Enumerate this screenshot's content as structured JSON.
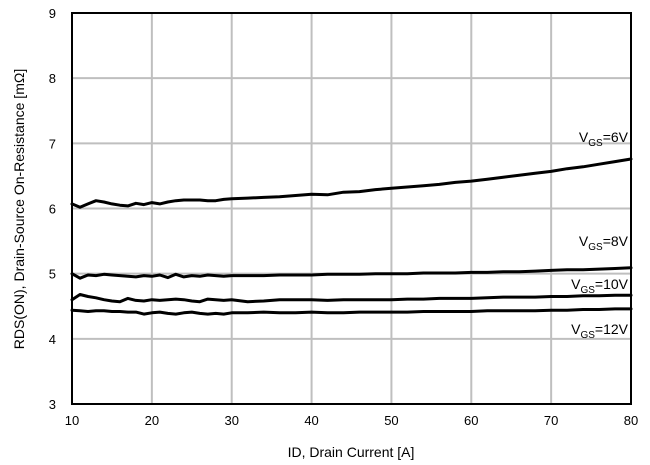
{
  "chart_data": {
    "type": "line",
    "title": "",
    "xlabel": "ID, Drain Current [A]",
    "ylabel": "RDS(ON), Drain-Source On-Resistance [mΩ]",
    "xlim": [
      10,
      80
    ],
    "ylim": [
      3,
      9
    ],
    "xticks": [
      10,
      20,
      30,
      40,
      50,
      60,
      70,
      80
    ],
    "yticks": [
      3,
      4,
      5,
      6,
      7,
      8,
      9
    ],
    "grid": true,
    "legend": "none",
    "line_color": "#000000",
    "grid_color": "#bfbfbf",
    "series": [
      {
        "name_main": "V",
        "name_sub": "GS",
        "name_suffix": "=6V",
        "x": [
          10,
          11,
          12,
          13,
          14,
          15,
          16,
          17,
          18,
          19,
          20,
          21,
          22,
          23,
          24,
          25,
          26,
          27,
          28,
          29,
          30,
          32,
          34,
          36,
          38,
          40,
          42,
          44,
          46,
          48,
          50,
          52,
          54,
          56,
          58,
          60,
          62,
          64,
          66,
          68,
          70,
          72,
          74,
          76,
          78,
          80
        ],
        "y": [
          6.07,
          6.02,
          6.07,
          6.12,
          6.1,
          6.07,
          6.05,
          6.04,
          6.08,
          6.06,
          6.09,
          6.07,
          6.1,
          6.12,
          6.13,
          6.13,
          6.13,
          6.12,
          6.12,
          6.14,
          6.15,
          6.16,
          6.17,
          6.18,
          6.2,
          6.22,
          6.21,
          6.25,
          6.26,
          6.29,
          6.31,
          6.33,
          6.35,
          6.37,
          6.4,
          6.42,
          6.45,
          6.48,
          6.51,
          6.54,
          6.57,
          6.61,
          6.64,
          6.68,
          6.72,
          6.76
        ]
      },
      {
        "name_main": "V",
        "name_sub": "GS",
        "name_suffix": "=8V",
        "x": [
          10,
          11,
          12,
          13,
          14,
          15,
          16,
          17,
          18,
          19,
          20,
          21,
          22,
          23,
          24,
          25,
          26,
          27,
          28,
          29,
          30,
          32,
          34,
          36,
          38,
          40,
          42,
          44,
          46,
          48,
          50,
          52,
          54,
          56,
          58,
          60,
          62,
          64,
          66,
          68,
          70,
          72,
          74,
          76,
          78,
          80
        ],
        "y": [
          5.0,
          4.93,
          4.98,
          4.97,
          4.99,
          4.98,
          4.97,
          4.96,
          4.95,
          4.97,
          4.96,
          4.98,
          4.94,
          4.99,
          4.95,
          4.97,
          4.96,
          4.98,
          4.97,
          4.96,
          4.97,
          4.97,
          4.97,
          4.98,
          4.98,
          4.98,
          4.99,
          4.99,
          4.99,
          5.0,
          5.0,
          5.0,
          5.01,
          5.01,
          5.01,
          5.02,
          5.02,
          5.03,
          5.03,
          5.04,
          5.05,
          5.06,
          5.06,
          5.07,
          5.08,
          5.09
        ]
      },
      {
        "name_main": "V",
        "name_sub": "GS",
        "name_suffix": "=10V",
        "x": [
          10,
          11,
          12,
          13,
          14,
          15,
          16,
          17,
          18,
          19,
          20,
          21,
          22,
          23,
          24,
          25,
          26,
          27,
          28,
          29,
          30,
          32,
          34,
          36,
          38,
          40,
          42,
          44,
          46,
          48,
          50,
          52,
          54,
          56,
          58,
          60,
          62,
          64,
          66,
          68,
          70,
          72,
          74,
          76,
          78,
          80
        ],
        "y": [
          4.6,
          4.68,
          4.65,
          4.63,
          4.6,
          4.58,
          4.57,
          4.62,
          4.59,
          4.58,
          4.6,
          4.59,
          4.6,
          4.61,
          4.6,
          4.58,
          4.57,
          4.61,
          4.6,
          4.59,
          4.6,
          4.57,
          4.58,
          4.6,
          4.6,
          4.6,
          4.59,
          4.6,
          4.6,
          4.6,
          4.6,
          4.61,
          4.61,
          4.62,
          4.62,
          4.62,
          4.63,
          4.64,
          4.64,
          4.64,
          4.65,
          4.65,
          4.66,
          4.66,
          4.67,
          4.67
        ]
      },
      {
        "name_main": "V",
        "name_sub": "GS",
        "name_suffix": "=12V",
        "x": [
          10,
          11,
          12,
          13,
          14,
          15,
          16,
          17,
          18,
          19,
          20,
          21,
          22,
          23,
          24,
          25,
          26,
          27,
          28,
          29,
          30,
          32,
          34,
          36,
          38,
          40,
          42,
          44,
          46,
          48,
          50,
          52,
          54,
          56,
          58,
          60,
          62,
          64,
          66,
          68,
          70,
          72,
          74,
          76,
          78,
          80
        ],
        "y": [
          4.44,
          4.43,
          4.42,
          4.43,
          4.43,
          4.42,
          4.42,
          4.41,
          4.41,
          4.38,
          4.4,
          4.41,
          4.39,
          4.38,
          4.4,
          4.41,
          4.39,
          4.38,
          4.39,
          4.38,
          4.4,
          4.4,
          4.41,
          4.4,
          4.4,
          4.41,
          4.4,
          4.4,
          4.41,
          4.41,
          4.41,
          4.41,
          4.42,
          4.42,
          4.42,
          4.42,
          4.43,
          4.43,
          4.43,
          4.43,
          4.44,
          4.44,
          4.45,
          4.45,
          4.46,
          4.46
        ]
      }
    ]
  }
}
